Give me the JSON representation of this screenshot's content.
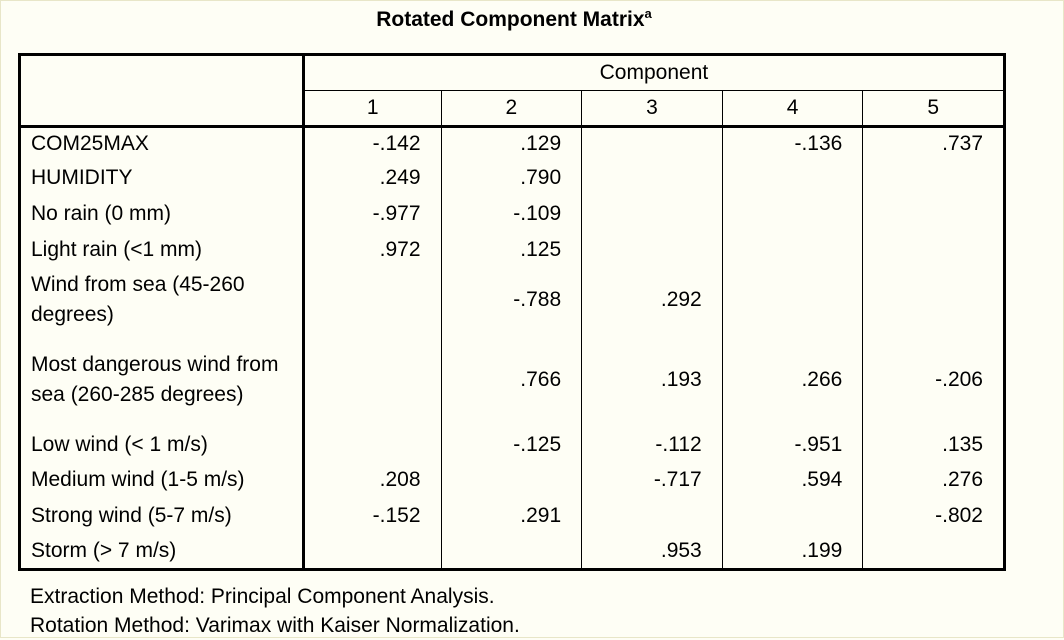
{
  "title": "Rotated Component Matrix",
  "title_superscript": "a",
  "header": {
    "group_label": "Component",
    "columns": [
      "1",
      "2",
      "3",
      "4",
      "5"
    ]
  },
  "rows": [
    {
      "label": "COM25MAX",
      "values": [
        "-.142",
        ".129",
        "",
        "-.136",
        ".737"
      ]
    },
    {
      "label": "HUMIDITY",
      "values": [
        ".249",
        ".790",
        "",
        "",
        ""
      ]
    },
    {
      "label": "No rain (0 mm)",
      "values": [
        "-.977",
        "-.109",
        "",
        "",
        ""
      ]
    },
    {
      "label": "Light rain (<1 mm)",
      "values": [
        ".972",
        ".125",
        "",
        "",
        ""
      ]
    },
    {
      "label": "Wind from sea (45-260 degrees)",
      "values": [
        "",
        "-.788",
        ".292",
        "",
        ""
      ]
    },
    {
      "label": "Most dangerous wind from sea (260-285 degrees)",
      "values": [
        "",
        ".766",
        ".193",
        ".266",
        "-.206"
      ]
    },
    {
      "label": "Low wind (< 1 m/s)",
      "values": [
        "",
        "-.125",
        "-.112",
        "-.951",
        ".135"
      ]
    },
    {
      "label": "Medium wind (1-5 m/s)",
      "values": [
        ".208",
        "",
        "-.717",
        ".594",
        ".276"
      ]
    },
    {
      "label": "Strong wind (5-7 m/s)",
      "values": [
        "-.152",
        ".291",
        "",
        "",
        "-.802"
      ]
    },
    {
      "label": "Storm (> 7 m/s)",
      "values": [
        "",
        "",
        ".953",
        ".199",
        ""
      ]
    }
  ],
  "footnotes": {
    "extraction": "Extraction Method: Principal Component Analysis.",
    "rotation": "Rotation Method: Varimax with Kaiser Normalization."
  }
}
